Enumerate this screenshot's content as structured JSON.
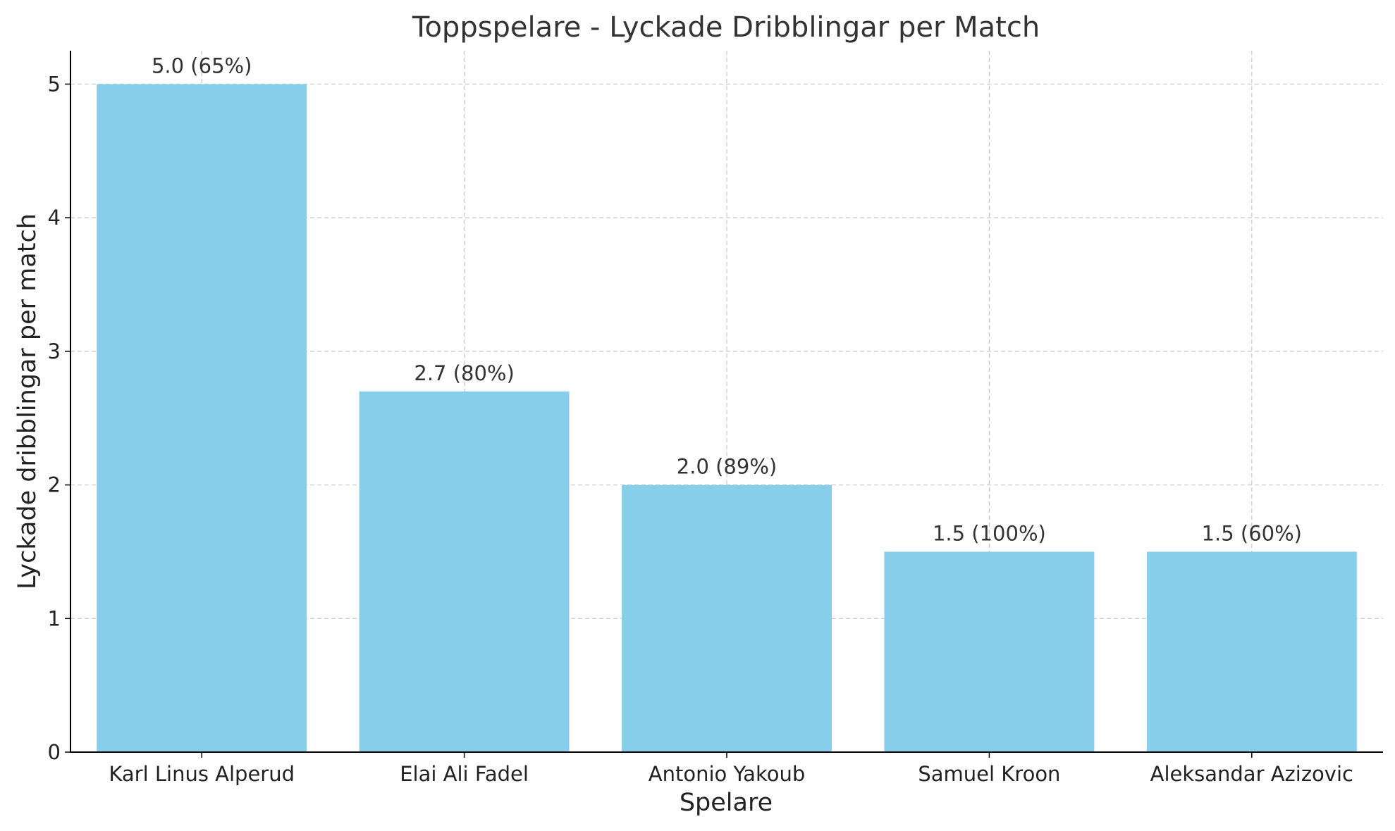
{
  "chart_data": {
    "type": "bar",
    "title": "Toppspelare - Lyckade Dribblingar per Match",
    "xlabel": "Spelare",
    "ylabel": "Lyckade dribblingar per match",
    "categories": [
      "Karl Linus Alperud",
      "Elai Ali Fadel",
      "Antonio Yakoub",
      "Samuel Kroon",
      "Aleksandar Azizovic"
    ],
    "values": [
      5.0,
      2.7,
      2.0,
      1.5,
      1.5
    ],
    "bar_labels": [
      "5.0 (65%)",
      "2.7 (80%)",
      "2.0 (89%)",
      "1.5 (100%)",
      "1.5 (60%)"
    ],
    "yticks": [
      0,
      1,
      2,
      3,
      4,
      5
    ],
    "ylim": [
      0,
      5.25
    ],
    "grid": true,
    "bar_color": "#87CEEB"
  }
}
